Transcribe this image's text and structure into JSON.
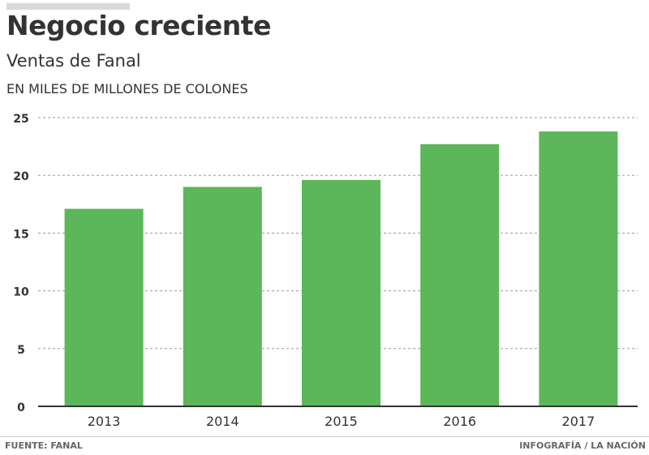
{
  "header": {
    "title": "Negocio creciente",
    "subtitle": "Ventas de Fanal",
    "units": "EN MILES DE MILLONES DE COLONES"
  },
  "footer": {
    "source": "FUENTE: FANAL",
    "credit": "INFOGRAFÍA / LA NACIÓN"
  },
  "colors": {
    "bar": "#5cb65a",
    "grid": "#9a9a9a",
    "axis": "#333333",
    "text": "#333333"
  },
  "chart_data": {
    "type": "bar",
    "title": "Negocio creciente",
    "subtitle": "Ventas de Fanal",
    "ylabel": "EN MILES DE MILLONES DE COLONES",
    "categories": [
      "2013",
      "2014",
      "2015",
      "2016",
      "2017"
    ],
    "values": [
      17.1,
      19.0,
      19.6,
      22.7,
      23.8
    ],
    "ylim": [
      0,
      25
    ],
    "yticks": [
      "0",
      "5",
      "10",
      "15",
      "20",
      "25"
    ],
    "grid": true
  }
}
